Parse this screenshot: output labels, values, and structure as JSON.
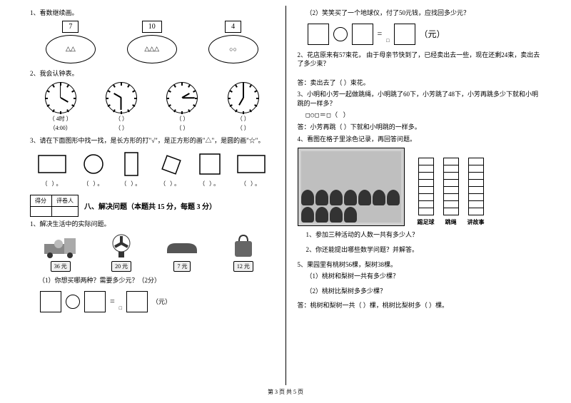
{
  "footer": "第 3 页 共 5 页",
  "left": {
    "q1": {
      "title": "1、看数继续画。",
      "items": [
        {
          "num": "7",
          "drawn": "△△"
        },
        {
          "num": "10",
          "drawn": "△△△"
        },
        {
          "num": "4",
          "drawn": "○○"
        }
      ]
    },
    "q2": {
      "title": "2、我会认钟表。",
      "clocks": [
        {
          "hourDeg": 120,
          "minDeg": 0,
          "label1": "（ 4时 ）",
          "label2": "（4:00）"
        },
        {
          "hourDeg": 300,
          "minDeg": 180,
          "label1": "（        ）",
          "label2": "（        ）"
        },
        {
          "hourDeg": 60,
          "minDeg": 90,
          "label1": "（        ）",
          "label2": "（        ）"
        },
        {
          "hourDeg": 210,
          "minDeg": 0,
          "label1": "（        ）",
          "label2": "（        ）"
        }
      ],
      "tick_count": 12
    },
    "q3": {
      "title": "3、请在下面图形中找一找，是长方形的打\"√\"，是正方形的画\"△\"，是圆的画\"☆\"。",
      "paren": "（        ）。"
    },
    "section8": {
      "score_labels": [
        "得分",
        "评卷人"
      ],
      "title": "八、解决问题（本题共 15 分，每题 3 分）"
    },
    "q_solve": {
      "title": "1、解决生活中的实际问题。",
      "products": [
        {
          "icon_name": "truck-icon",
          "price": "36 元"
        },
        {
          "icon_name": "fan-icon",
          "price": "20 元"
        },
        {
          "icon_name": "shoe-icon",
          "price": "7 元"
        },
        {
          "icon_name": "bag-icon",
          "price": "12 元"
        }
      ],
      "sub1": "（1）你想买哪两种？需要多少元？（2分）",
      "unit": "（元）"
    }
  },
  "right": {
    "q_sub2": {
      "text": "（2）笑笑买了一个地球仪，付了50元钱，应找回多少元？",
      "unit": "（元）"
    },
    "q2": {
      "text": "2、花店原来有57束花，  由于母亲节快到了，已经卖出去一些，现在还剩24束，卖出去了多少束？",
      "ans": "答：卖出去了（    ）束花。"
    },
    "q3": {
      "text": "3、小明和小芳一起做跳绳，小明跳了60下，小芳跳了48下，小芳再跳多少下就和小明跳的一样多？",
      "eq": "□○□＝□（  ）",
      "ans": "答：小芳再跳（    ）下就和小明跳的一样多。"
    },
    "q4": {
      "text": "4、看图在格子里涂色记录，再回答问题。",
      "bars": [
        {
          "label": "踢足球",
          "cells": 8
        },
        {
          "label": "跳绳",
          "cells": 8
        },
        {
          "label": "讲故事",
          "cells": 8
        }
      ],
      "kids_count": 11,
      "s1": "1、参加三种活动的人数一共有多少人？",
      "s2": "2、你还能提出哪些数学问题？并解答。"
    },
    "q5": {
      "text": "5、果园里有桃树56棵，梨树38棵。",
      "s1": "（1）桃树和梨树一共有多少棵？",
      "s2": "（2）桃树比梨树多多少棵？",
      "ans": "答：桃树和梨树一共（      ）棵，桃树比梨树多（      ）棵。"
    }
  }
}
